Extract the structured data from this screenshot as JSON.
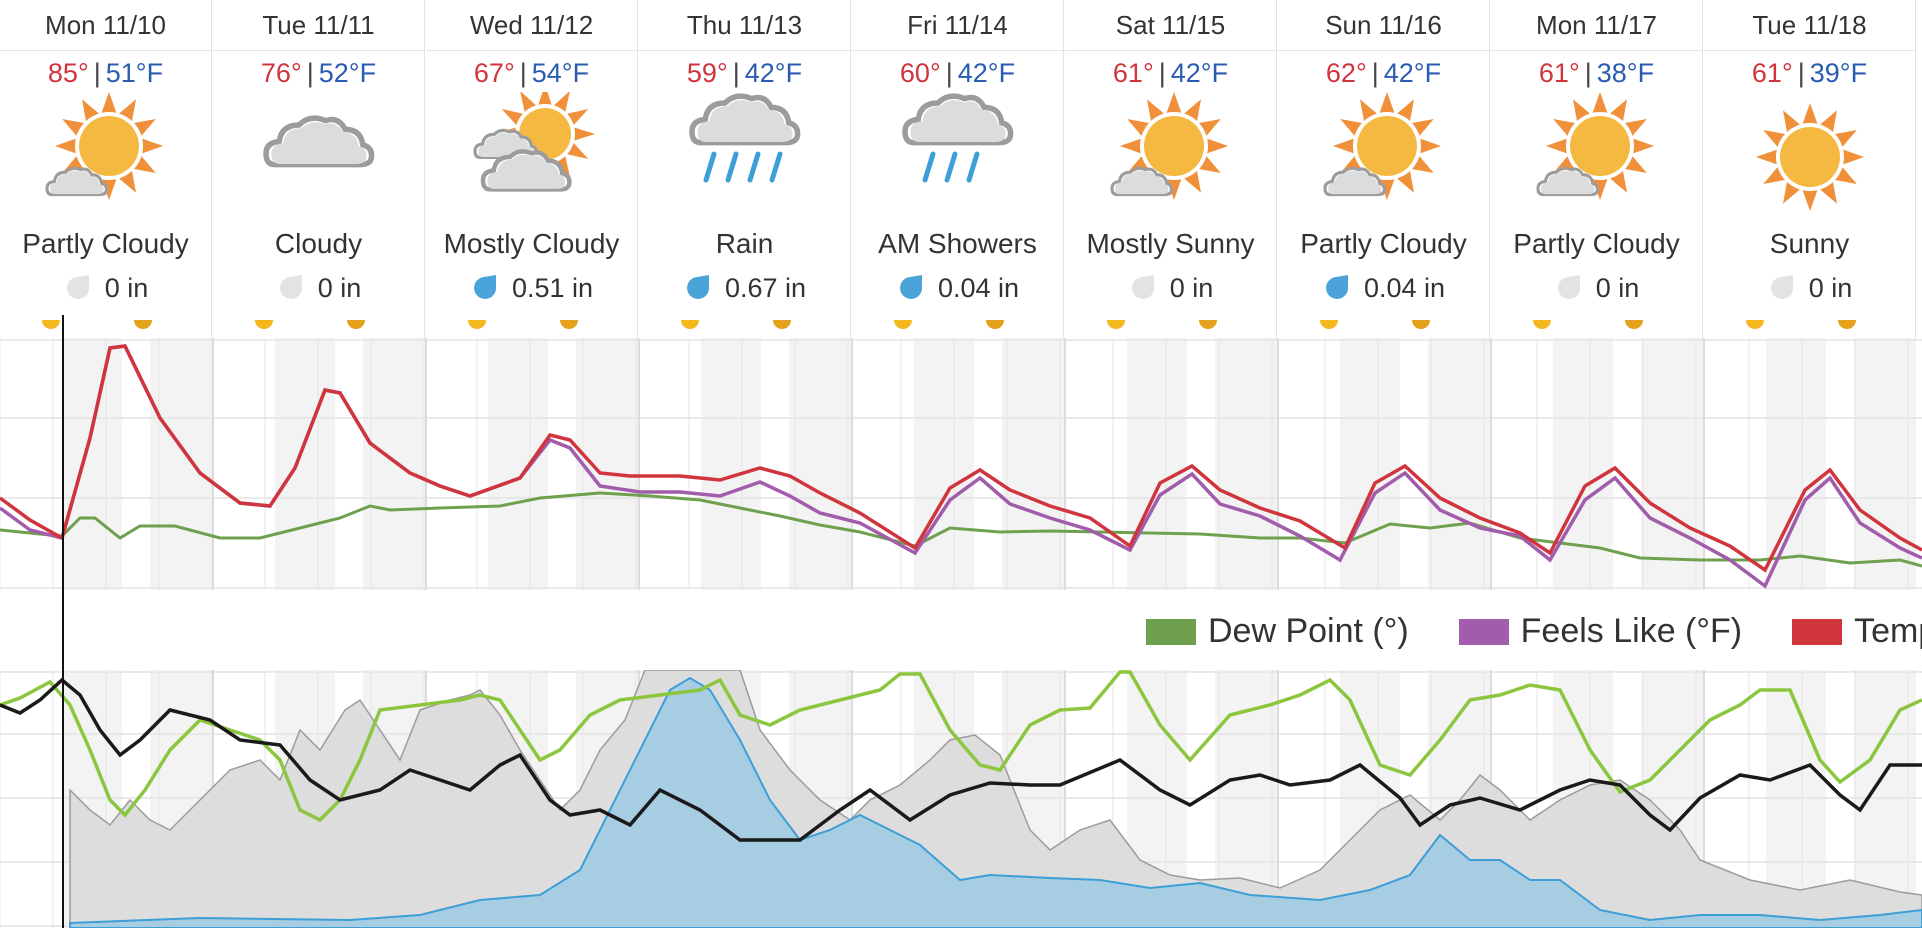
{
  "days": [
    {
      "label": "Mon 11/10",
      "high": "85°",
      "low": "51°F",
      "icon": "partly-cloudy-icon",
      "condition": "Partly Cloudy",
      "precip": "0 in",
      "wet": false
    },
    {
      "label": "Tue 11/11",
      "high": "76°",
      "low": "52°F",
      "icon": "cloudy-icon",
      "condition": "Cloudy",
      "precip": "0 in",
      "wet": false
    },
    {
      "label": "Wed 11/12",
      "high": "67°",
      "low": "54°F",
      "icon": "mostly-cloudy-icon",
      "condition": "Mostly Cloudy",
      "precip": "0.51 in",
      "wet": true
    },
    {
      "label": "Thu 11/13",
      "high": "59°",
      "low": "42°F",
      "icon": "rain-icon",
      "condition": "Rain",
      "precip": "0.67 in",
      "wet": true
    },
    {
      "label": "Fri 11/14",
      "high": "60°",
      "low": "42°F",
      "icon": "showers-icon",
      "condition": "AM Showers",
      "precip": "0.04 in",
      "wet": true
    },
    {
      "label": "Sat 11/15",
      "high": "61°",
      "low": "42°F",
      "icon": "partly-cloudy-icon",
      "condition": "Mostly Sunny",
      "precip": "0 in",
      "wet": false
    },
    {
      "label": "Sun 11/16",
      "high": "62°",
      "low": "42°F",
      "icon": "partly-cloudy-icon",
      "condition": "Partly Cloudy",
      "precip": "0.04 in",
      "wet": true
    },
    {
      "label": "Mon 11/17",
      "high": "61°",
      "low": "38°F",
      "icon": "partly-cloudy-icon",
      "condition": "Partly Cloudy",
      "precip": "0 in",
      "wet": false
    },
    {
      "label": "Tue 11/18",
      "high": "61°",
      "low": "39°F",
      "icon": "sunny-icon",
      "condition": "Sunny",
      "precip": "0 in",
      "wet": false
    }
  ],
  "temp_separator": "|",
  "legend": [
    {
      "label": "Dew Point (°)",
      "color": "#6ea04e"
    },
    {
      "label": "Feels Like (°F)",
      "color": "#a15cab"
    },
    {
      "label": "Temperature (°F)",
      "color": "#d0343c"
    }
  ],
  "colors": {
    "temperature": "#d0343c",
    "feels_like": "#a15cab",
    "dew_point": "#6ea04e",
    "precip_fill": "#a7cde3",
    "precip_line": "#3d9fd6",
    "cloud_fill": "#dddddd",
    "cloud_line": "#9c9c9c",
    "humidity": "#8cc63f",
    "pressure": "#1a1a1a",
    "sun": "#f5b942",
    "sun_ray": "#f0903a"
  }
}
